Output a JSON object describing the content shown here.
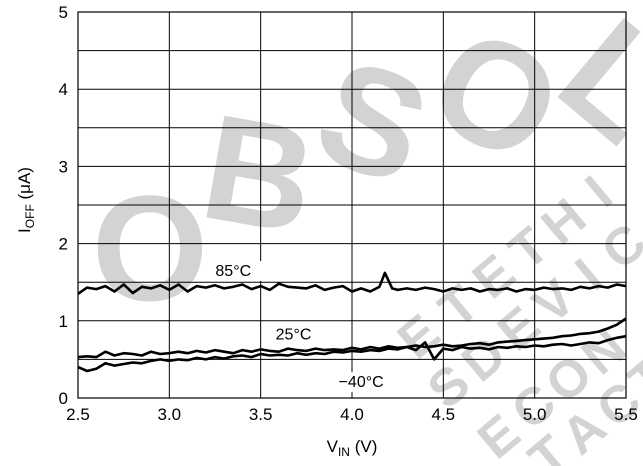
{
  "chart_data": {
    "type": "line",
    "xlabel": {
      "base": "V",
      "sub": "IN",
      "unit": " (V)"
    },
    "ylabel": {
      "base": "I",
      "sub": "OFF",
      "unit": " (μA)"
    },
    "xlim": [
      2.5,
      5.5
    ],
    "ylim": [
      0,
      5
    ],
    "xticks": [
      "2.5",
      "3.0",
      "3.5",
      "4.0",
      "4.5",
      "5.0",
      "5.5"
    ],
    "yticks": [
      "0",
      "1",
      "2",
      "3",
      "4",
      "5"
    ],
    "grid": true,
    "watermark": [
      "O",
      "B",
      "S",
      "O",
      "L",
      "E",
      "T",
      "E",
      "T",
      "H",
      "I",
      "S",
      "D",
      "E",
      "V",
      "I",
      "C",
      "E",
      "C",
      "O",
      "N",
      "T",
      "A",
      "C",
      "T"
    ],
    "series": [
      {
        "name": "85°C",
        "label_at": [
          3.35,
          1.58
        ],
        "x": [
          2.5,
          2.55,
          2.6,
          2.65,
          2.7,
          2.75,
          2.8,
          2.85,
          2.9,
          2.95,
          3.0,
          3.05,
          3.1,
          3.15,
          3.2,
          3.25,
          3.3,
          3.35,
          3.4,
          3.45,
          3.5,
          3.55,
          3.6,
          3.65,
          3.7,
          3.75,
          3.8,
          3.85,
          3.9,
          3.95,
          4.0,
          4.05,
          4.1,
          4.15,
          4.18,
          4.22,
          4.25,
          4.3,
          4.35,
          4.4,
          4.45,
          4.5,
          4.55,
          4.6,
          4.65,
          4.7,
          4.75,
          4.8,
          4.85,
          4.9,
          4.95,
          5.0,
          5.05,
          5.1,
          5.15,
          5.2,
          5.25,
          5.3,
          5.35,
          5.4,
          5.45,
          5.5
        ],
        "values": [
          1.35,
          1.43,
          1.41,
          1.45,
          1.38,
          1.47,
          1.36,
          1.44,
          1.42,
          1.46,
          1.4,
          1.47,
          1.38,
          1.45,
          1.43,
          1.46,
          1.42,
          1.44,
          1.47,
          1.41,
          1.45,
          1.4,
          1.48,
          1.44,
          1.43,
          1.42,
          1.46,
          1.4,
          1.43,
          1.45,
          1.38,
          1.42,
          1.38,
          1.44,
          1.62,
          1.42,
          1.4,
          1.42,
          1.4,
          1.43,
          1.41,
          1.38,
          1.42,
          1.4,
          1.42,
          1.38,
          1.41,
          1.4,
          1.42,
          1.38,
          1.41,
          1.4,
          1.43,
          1.41,
          1.42,
          1.4,
          1.44,
          1.42,
          1.45,
          1.43,
          1.47,
          1.45
        ]
      },
      {
        "name": "25°C",
        "label_at": [
          3.68,
          0.76
        ],
        "x": [
          2.5,
          2.55,
          2.6,
          2.65,
          2.7,
          2.75,
          2.8,
          2.85,
          2.9,
          2.95,
          3.0,
          3.05,
          3.1,
          3.15,
          3.2,
          3.25,
          3.3,
          3.35,
          3.4,
          3.45,
          3.5,
          3.55,
          3.6,
          3.65,
          3.7,
          3.75,
          3.8,
          3.85,
          3.9,
          3.95,
          4.0,
          4.05,
          4.1,
          4.15,
          4.2,
          4.25,
          4.3,
          4.35,
          4.4,
          4.45,
          4.5,
          4.55,
          4.6,
          4.65,
          4.7,
          4.75,
          4.8,
          4.85,
          4.9,
          4.95,
          5.0,
          5.05,
          5.1,
          5.15,
          5.2,
          5.25,
          5.3,
          5.35,
          5.4,
          5.45,
          5.5
        ],
        "values": [
          0.53,
          0.54,
          0.53,
          0.6,
          0.55,
          0.58,
          0.57,
          0.55,
          0.6,
          0.57,
          0.58,
          0.6,
          0.58,
          0.61,
          0.59,
          0.62,
          0.6,
          0.58,
          0.62,
          0.6,
          0.63,
          0.61,
          0.6,
          0.64,
          0.62,
          0.61,
          0.64,
          0.62,
          0.63,
          0.62,
          0.65,
          0.63,
          0.66,
          0.64,
          0.67,
          0.65,
          0.66,
          0.68,
          0.66,
          0.67,
          0.69,
          0.67,
          0.68,
          0.7,
          0.71,
          0.69,
          0.72,
          0.73,
          0.74,
          0.75,
          0.76,
          0.77,
          0.78,
          0.8,
          0.81,
          0.83,
          0.84,
          0.86,
          0.9,
          0.95,
          1.03
        ]
      },
      {
        "name": "−40°C",
        "label_at": [
          4.05,
          0.14
        ],
        "x": [
          2.5,
          2.55,
          2.6,
          2.65,
          2.7,
          2.75,
          2.8,
          2.85,
          2.9,
          2.95,
          3.0,
          3.05,
          3.1,
          3.15,
          3.2,
          3.25,
          3.3,
          3.35,
          3.4,
          3.45,
          3.5,
          3.55,
          3.6,
          3.65,
          3.7,
          3.75,
          3.8,
          3.85,
          3.9,
          3.95,
          4.0,
          4.05,
          4.1,
          4.15,
          4.2,
          4.25,
          4.3,
          4.35,
          4.4,
          4.45,
          4.5,
          4.55,
          4.6,
          4.65,
          4.7,
          4.75,
          4.8,
          4.85,
          4.9,
          4.95,
          5.0,
          5.05,
          5.1,
          5.15,
          5.2,
          5.25,
          5.3,
          5.35,
          5.4,
          5.45,
          5.5
        ],
        "values": [
          0.4,
          0.35,
          0.38,
          0.45,
          0.42,
          0.44,
          0.46,
          0.45,
          0.48,
          0.5,
          0.48,
          0.5,
          0.49,
          0.52,
          0.5,
          0.53,
          0.51,
          0.54,
          0.55,
          0.53,
          0.57,
          0.55,
          0.56,
          0.55,
          0.58,
          0.56,
          0.58,
          0.57,
          0.6,
          0.59,
          0.61,
          0.6,
          0.62,
          0.61,
          0.64,
          0.63,
          0.66,
          0.62,
          0.72,
          0.5,
          0.64,
          0.62,
          0.66,
          0.64,
          0.65,
          0.63,
          0.66,
          0.65,
          0.67,
          0.66,
          0.68,
          0.67,
          0.69,
          0.7,
          0.68,
          0.7,
          0.72,
          0.71,
          0.75,
          0.78,
          0.8
        ]
      }
    ]
  }
}
